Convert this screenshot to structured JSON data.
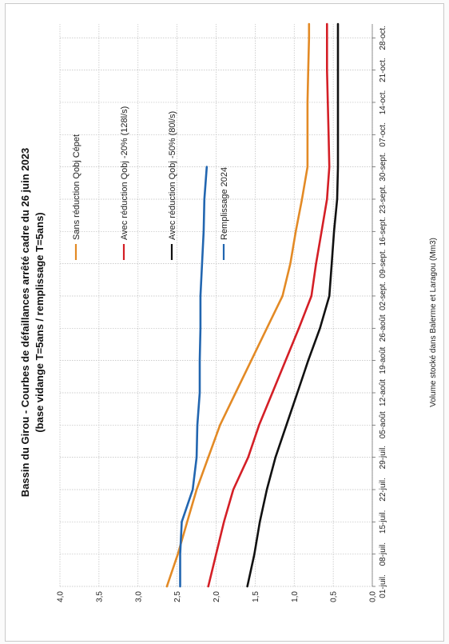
{
  "chart_data": {
    "type": "line",
    "title": "Bassin du Girou - Courbes de défaillances arrêté cadre du 26 juin 2023",
    "subtitle": "(base vidange T=5ans / remplissage T=5ans)",
    "ylabel": "Volume stocké dans Balerme et Laragou (Mm3)",
    "xlabel": "",
    "ylim": [
      0,
      4
    ],
    "y_ticks": [
      "0,0",
      "0,5",
      "1,0",
      "1,5",
      "2,0",
      "2,5",
      "3,0",
      "3,5",
      "4,0"
    ],
    "x_ticks": [
      "01-juil.",
      "08-juil.",
      "15-juil.",
      "22-juil.",
      "29-juil.",
      "05-août",
      "12-août",
      "19-août",
      "26-août",
      "02-sept.",
      "09-sept.",
      "16-sept.",
      "23-sept.",
      "30-sept.",
      "07-oct.",
      "14-oct.",
      "21-oct.",
      "28-oct."
    ],
    "grid": true,
    "legend_position": "top",
    "series": [
      {
        "name": "Sans réduction Qobj Cépet",
        "color": "#e38a25",
        "x": [
          0,
          4,
          7,
          14,
          21,
          28,
          35,
          42,
          49,
          56,
          63,
          70,
          77,
          84,
          91,
          98,
          105,
          112,
          119,
          122
        ],
        "values": [
          2.63,
          2.55,
          2.49,
          2.37,
          2.25,
          2.1,
          1.95,
          1.75,
          1.55,
          1.35,
          1.15,
          1.05,
          0.98,
          0.9,
          0.83,
          0.83,
          0.83,
          0.82,
          0.81,
          0.81
        ]
      },
      {
        "name": "Avec réduction Qobj -20% (128l/s)",
        "color": "#d41f26",
        "x": [
          0,
          7,
          14,
          21,
          28,
          35,
          42,
          49,
          56,
          63,
          70,
          77,
          84,
          91,
          98,
          105,
          112,
          119,
          122
        ],
        "values": [
          2.1,
          2.0,
          1.9,
          1.78,
          1.59,
          1.45,
          1.28,
          1.11,
          0.94,
          0.78,
          0.72,
          0.65,
          0.58,
          0.55,
          0.56,
          0.57,
          0.58,
          0.58,
          0.58
        ]
      },
      {
        "name": "Avec réduction Qobj -50% (80l/s)",
        "color": "#111111",
        "x": [
          0,
          7,
          14,
          21,
          28,
          35,
          42,
          49,
          56,
          63,
          70,
          77,
          84,
          91,
          98,
          105,
          112,
          119,
          122
        ],
        "values": [
          1.6,
          1.51,
          1.44,
          1.35,
          1.24,
          1.1,
          0.96,
          0.82,
          0.67,
          0.55,
          0.52,
          0.49,
          0.45,
          0.44,
          0.44,
          0.44,
          0.44,
          0.44,
          0.44
        ]
      },
      {
        "name": "Remplissage 2024",
        "color": "#2266b0",
        "x": [
          0,
          7,
          14,
          21,
          28,
          35,
          42,
          49,
          56,
          63,
          70,
          77,
          84,
          91
        ],
        "values": [
          2.46,
          2.46,
          2.44,
          2.3,
          2.25,
          2.24,
          2.21,
          2.21,
          2.2,
          2.2,
          2.18,
          2.16,
          2.15,
          2.12
        ]
      }
    ]
  }
}
